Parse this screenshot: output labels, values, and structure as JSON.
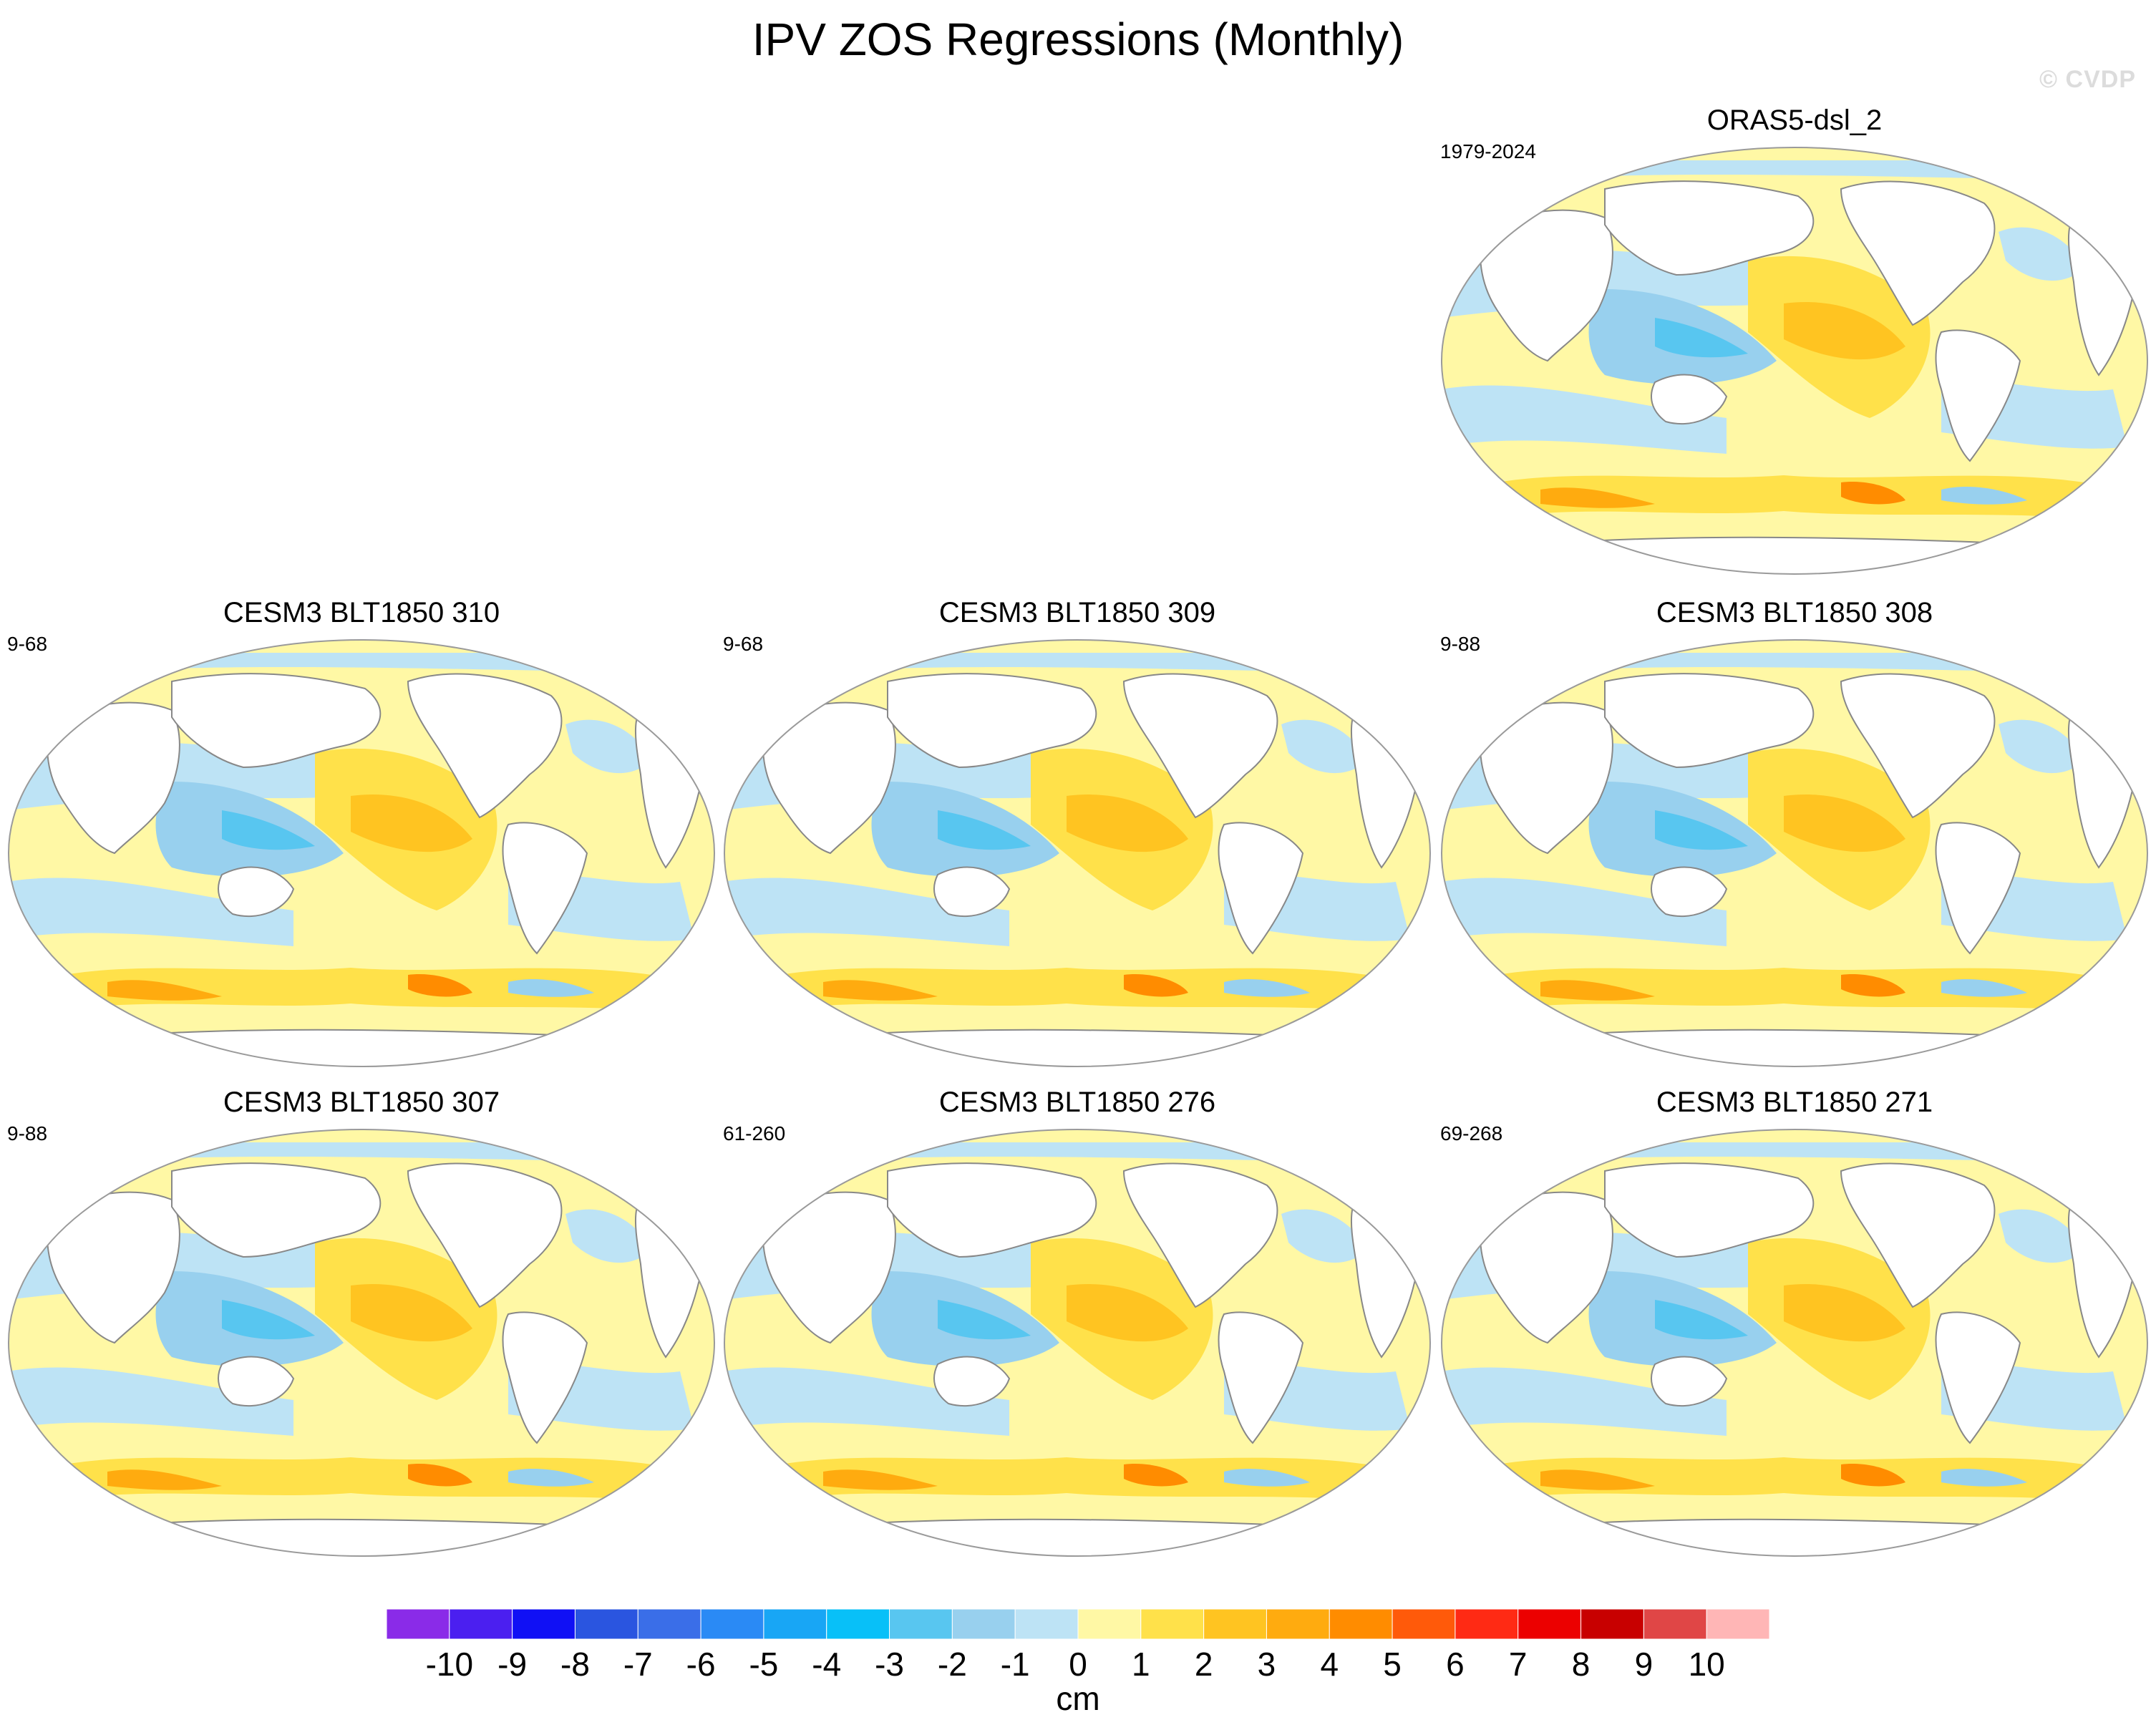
{
  "figure": {
    "title": "IPV ZOS Regressions (Monthly)",
    "watermark": "© CVDP"
  },
  "panels": [
    {
      "title": "ORAS5-dsl_2",
      "range": "1979-2024"
    },
    {
      "title": "CESM3 BLT1850 310",
      "range": "9-68"
    },
    {
      "title": "CESM3 BLT1850 309",
      "range": "9-68"
    },
    {
      "title": "CESM3 BLT1850 308",
      "range": "9-88"
    },
    {
      "title": "CESM3 BLT1850 307",
      "range": "9-88"
    },
    {
      "title": "CESM3 BLT1850 276",
      "range": "61-260"
    },
    {
      "title": "CESM3 BLT1850 271",
      "range": "69-268"
    }
  ],
  "colorbar": {
    "units": "cm",
    "labels": [
      "-10",
      "-9",
      "-8",
      "-7",
      "-6",
      "-5",
      "-4",
      "-3",
      "-2",
      "-1",
      "0",
      "1",
      "2",
      "3",
      "4",
      "5",
      "6",
      "7",
      "8",
      "9",
      "10"
    ],
    "colors": [
      "#8a2be8",
      "#4b1ff0",
      "#1010f5",
      "#2a55e0",
      "#3a6ee8",
      "#2a8af5",
      "#18a6f5",
      "#08c0f8",
      "#58c6f0",
      "#98d0ee",
      "#bde3f5",
      "#fff8a5",
      "#ffe14a",
      "#ffc421",
      "#ffab0f",
      "#ff8c00",
      "#ff5a0a",
      "#ff2a14",
      "#ec0000",
      "#c80000",
      "#e04646",
      "#ffb6b6"
    ]
  },
  "chart_data": {
    "type": "map",
    "variable": "ZOS regression onto IPV",
    "units": "cm",
    "color_levels": [
      -10,
      -9,
      -8,
      -7,
      -6,
      -5,
      -4,
      -3,
      -2,
      -1,
      0,
      1,
      2,
      3,
      4,
      5,
      6,
      7,
      8,
      9,
      10
    ],
    "maps": [
      {
        "name": "ORAS5-dsl_2",
        "period": "1979-2024"
      },
      {
        "name": "CESM3 BLT1850 310",
        "period": "9-68"
      },
      {
        "name": "CESM3 BLT1850 309",
        "period": "9-68"
      },
      {
        "name": "CESM3 BLT1850 308",
        "period": "9-88"
      },
      {
        "name": "CESM3 BLT1850 307",
        "period": "9-88"
      },
      {
        "name": "CESM3 BLT1850 276",
        "period": "61-260"
      },
      {
        "name": "CESM3 BLT1850 271",
        "period": "69-268"
      }
    ]
  }
}
